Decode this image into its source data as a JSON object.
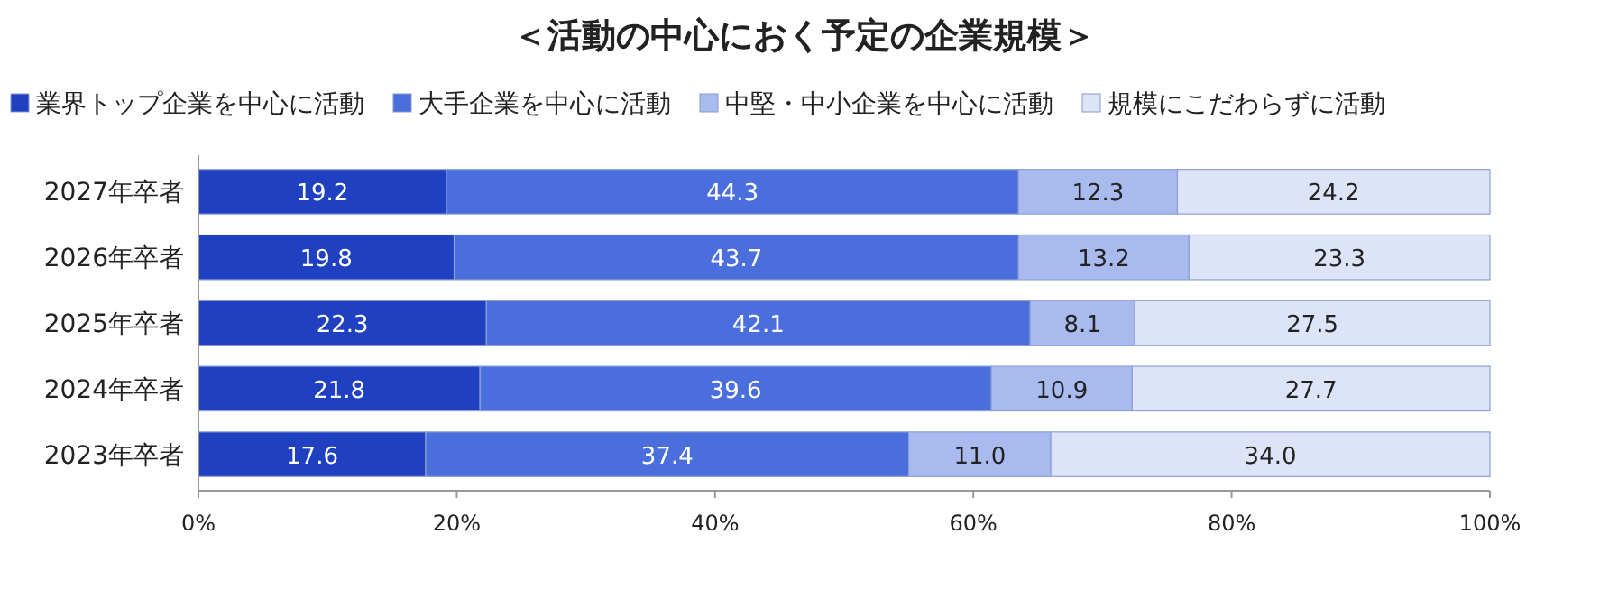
{
  "chart_data": {
    "type": "bar",
    "orientation": "horizontal",
    "stacked": true,
    "title": "＜活動の中心におく予定の企業規模＞",
    "categories": [
      "2027年卒者",
      "2026年卒者",
      "2025年卒者",
      "2024年卒者",
      "2023年卒者"
    ],
    "series": [
      {
        "name": "業界トップ企業を中心に活動",
        "color": "#1f40c0",
        "values": [
          19.2,
          19.8,
          22.3,
          21.8,
          17.6
        ],
        "value_labels": [
          "19.2",
          "19.8",
          "22.3",
          "21.8",
          "17.6"
        ]
      },
      {
        "name": "大手企業を中心に活動",
        "color": "#4a6fdc",
        "values": [
          44.3,
          43.7,
          42.1,
          39.6,
          37.4
        ],
        "value_labels": [
          "44.3",
          "43.7",
          "42.1",
          "39.6",
          "37.4"
        ]
      },
      {
        "name": "中堅・中小企業を中心に活動",
        "color": "#a9baee",
        "values": [
          12.3,
          13.2,
          8.1,
          10.9,
          11.0
        ],
        "value_labels": [
          "12.3",
          "13.2",
          "8.1",
          "10.9",
          "11.0"
        ]
      },
      {
        "name": "規模にこだわらずに活動",
        "color": "#dde4f8",
        "values": [
          24.2,
          23.3,
          27.5,
          27.7,
          34.0
        ],
        "value_labels": [
          "24.2",
          "23.3",
          "27.5",
          "27.7",
          "34.0"
        ]
      }
    ],
    "xlim": [
      0,
      100
    ],
    "xticks": [
      {
        "value": 0,
        "label": "0%"
      },
      {
        "value": 20,
        "label": "20%"
      },
      {
        "value": 40,
        "label": "40%"
      },
      {
        "value": 60,
        "label": "60%"
      },
      {
        "value": 80,
        "label": "80%"
      },
      {
        "value": 100,
        "label": "100%"
      }
    ],
    "legend": "top",
    "grid": false
  }
}
